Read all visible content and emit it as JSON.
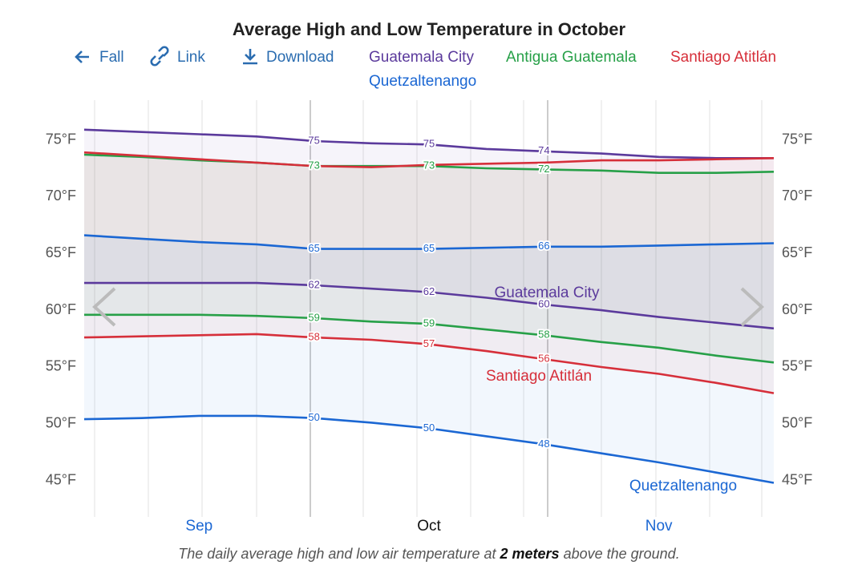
{
  "chart_data": {
    "type": "line",
    "title": "Average High and Low Temperature in October",
    "nav": [
      "Fall",
      "Link",
      "Download"
    ],
    "categories": [
      null,
      null,
      "Sep",
      null,
      null,
      null,
      "Oct",
      null,
      null,
      null,
      "Nov",
      null,
      null
    ],
    "ylim": [
      41.8,
      78.5
    ],
    "yticks": [
      {
        "value": 45,
        "label": "45°F"
      },
      {
        "value": 50,
        "label": "50°F"
      },
      {
        "value": 55,
        "label": "55°F"
      },
      {
        "value": 60,
        "label": "60°F"
      },
      {
        "value": 65,
        "label": "65°F"
      },
      {
        "value": 70,
        "label": "70°F"
      },
      {
        "value": 75,
        "label": "75°F"
      }
    ],
    "grid": false,
    "series": [
      {
        "name": "Guatemala City",
        "color": "#5b3a9c",
        "high": {
          "values": [
            75.9,
            75.7,
            75.5,
            75.3,
            74.9,
            74.7,
            74.6,
            74.2,
            74.0,
            73.8,
            73.5,
            73.4,
            73.4
          ],
          "value_labels": [
            null,
            null,
            null,
            null,
            "75",
            null,
            "75",
            null,
            "74",
            null,
            null,
            null,
            null
          ]
        },
        "low": {
          "values": [
            62.4,
            62.4,
            62.4,
            62.4,
            62.2,
            61.9,
            61.6,
            61.1,
            60.5,
            60.0,
            59.4,
            58.9,
            58.4
          ],
          "value_labels": [
            null,
            null,
            null,
            null,
            "62",
            null,
            "62",
            null,
            "60",
            null,
            null,
            null,
            null
          ]
        }
      },
      {
        "name": "Antigua Guatemala",
        "color": "#27a048",
        "high": {
          "values": [
            73.7,
            73.5,
            73.2,
            73.0,
            72.7,
            72.7,
            72.7,
            72.5,
            72.4,
            72.3,
            72.1,
            72.1,
            72.2
          ],
          "value_labels": [
            null,
            null,
            null,
            null,
            "73",
            null,
            "73",
            null,
            "72",
            null,
            null,
            null,
            null
          ]
        },
        "low": {
          "values": [
            59.6,
            59.6,
            59.6,
            59.5,
            59.3,
            59.0,
            58.8,
            58.3,
            57.8,
            57.2,
            56.7,
            56.0,
            55.4
          ],
          "value_labels": [
            null,
            null,
            null,
            null,
            "59",
            null,
            "59",
            null,
            "58",
            null,
            null,
            null,
            null
          ]
        }
      },
      {
        "name": "Santiago Atitlán",
        "color": "#d62f3a",
        "high": {
          "values": [
            73.9,
            73.6,
            73.3,
            73.0,
            72.7,
            72.6,
            72.8,
            72.9,
            73.0,
            73.2,
            73.2,
            73.3,
            73.4
          ],
          "value_labels": [
            null,
            null,
            null,
            null,
            null,
            null,
            null,
            null,
            null,
            null,
            null,
            null,
            null
          ]
        },
        "low": {
          "values": [
            57.6,
            57.7,
            57.8,
            57.9,
            57.6,
            57.4,
            57.0,
            56.4,
            55.7,
            55.0,
            54.4,
            53.6,
            52.7
          ],
          "value_labels": [
            null,
            null,
            null,
            null,
            "58",
            null,
            "57",
            null,
            "56",
            null,
            null,
            null,
            null
          ]
        }
      },
      {
        "name": "Quetzaltenango",
        "color": "#1b67d3",
        "high": {
          "values": [
            66.6,
            66.3,
            66.0,
            65.8,
            65.4,
            65.4,
            65.4,
            65.5,
            65.6,
            65.6,
            65.7,
            65.8,
            65.9
          ],
          "value_labels": [
            null,
            null,
            null,
            null,
            "65",
            null,
            "65",
            null,
            "66",
            null,
            null,
            null,
            null
          ]
        },
        "low": {
          "values": [
            50.4,
            50.5,
            50.7,
            50.7,
            50.5,
            50.1,
            49.6,
            48.9,
            48.2,
            47.4,
            46.6,
            45.7,
            44.8
          ],
          "value_labels": [
            null,
            null,
            null,
            null,
            "50",
            null,
            "50",
            null,
            "48",
            null,
            null,
            null,
            null
          ]
        }
      }
    ],
    "caption": [
      "The daily average high and low air temperature at ",
      "2 meters",
      " above the ground."
    ]
  }
}
